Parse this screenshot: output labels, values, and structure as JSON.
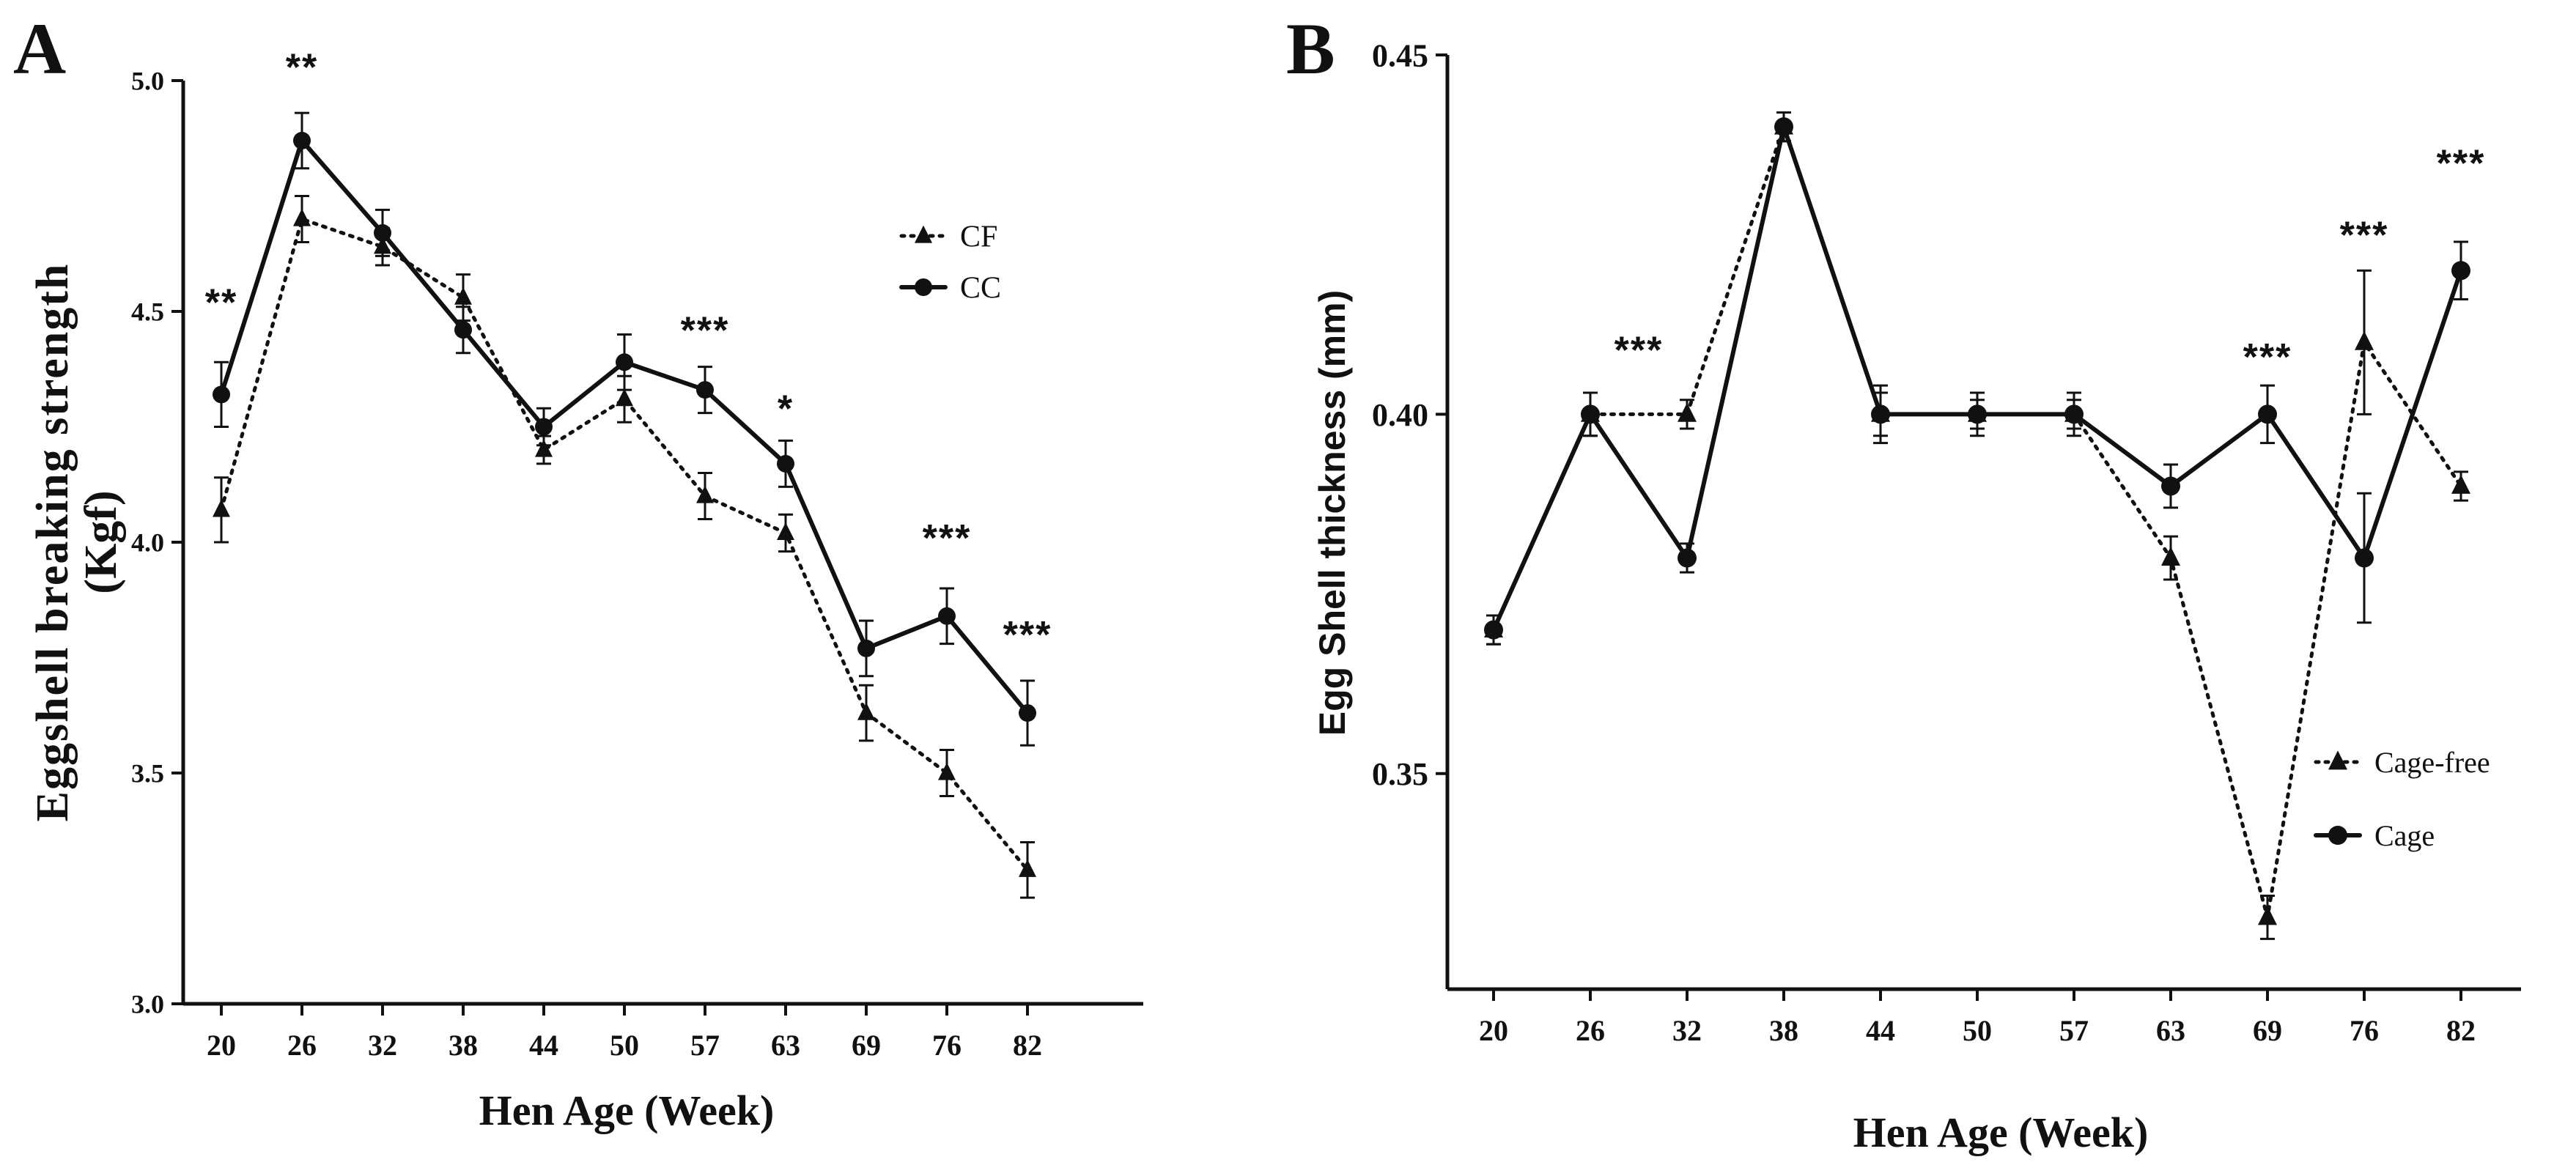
{
  "figure": {
    "panels": [
      "A",
      "B"
    ]
  },
  "colors": {
    "ink": "#111111",
    "background": "#ffffff"
  },
  "chart_data": [
    {
      "panel": "A",
      "type": "line",
      "title": "",
      "xlabel": "Hen Age (Week)",
      "ylabel_line1": "Eggshell breaking strength",
      "ylabel_line2": "(Kgf)",
      "categories": [
        "20",
        "26",
        "32",
        "38",
        "44",
        "50",
        "57",
        "63",
        "69",
        "76",
        "82"
      ],
      "ylim": [
        3.0,
        5.0
      ],
      "yticks": [
        3.0,
        3.5,
        4.0,
        4.5,
        5.0
      ],
      "ytick_labels": [
        "3.0",
        "3.5",
        "4.0",
        "4.5",
        "5.0"
      ],
      "grid": false,
      "legend_position": "top-right",
      "series": [
        {
          "name": "CF",
          "style": "dotted",
          "marker": "triangle",
          "values": [
            4.07,
            4.7,
            4.64,
            4.53,
            4.2,
            4.31,
            4.1,
            4.02,
            3.63,
            3.5,
            3.29
          ],
          "errors": [
            0.07,
            0.05,
            0.04,
            0.05,
            0.03,
            0.05,
            0.05,
            0.04,
            0.06,
            0.05,
            0.06
          ]
        },
        {
          "name": "CC",
          "style": "solid",
          "marker": "circle",
          "values": [
            4.32,
            4.87,
            4.67,
            4.46,
            4.25,
            4.39,
            4.33,
            4.17,
            3.77,
            3.84,
            3.63
          ],
          "errors": [
            0.07,
            0.06,
            0.05,
            0.05,
            0.04,
            0.06,
            0.05,
            0.05,
            0.06,
            0.06,
            0.07
          ]
        }
      ],
      "annotations": [
        {
          "category": "20",
          "text": "**",
          "value": 4.52
        },
        {
          "category": "26",
          "text": "**",
          "value": 5.03
        },
        {
          "category": "57",
          "text": "***",
          "value": 4.46
        },
        {
          "category": "63",
          "text": "*",
          "value": 4.29
        },
        {
          "category": "76",
          "text": "***",
          "value": 4.01
        },
        {
          "category": "82",
          "text": "***",
          "value": 3.8
        }
      ]
    },
    {
      "panel": "B",
      "type": "line",
      "title": "",
      "xlabel": "Hen Age (Week)",
      "ylabel": "Egg Shell thickness (mm)",
      "categories": [
        "20",
        "26",
        "32",
        "38",
        "44",
        "50",
        "57",
        "63",
        "69",
        "76",
        "82"
      ],
      "ylim": [
        0.32,
        0.45
      ],
      "yticks": [
        0.35,
        0.4,
        0.45
      ],
      "ytick_labels": [
        "0.35",
        "0.40",
        "0.45"
      ],
      "grid": false,
      "legend_position": "bottom-right",
      "series": [
        {
          "name": "Cage-free",
          "style": "dotted",
          "marker": "triangle",
          "values": [
            0.37,
            0.4,
            0.4,
            0.44,
            0.4,
            0.4,
            0.4,
            0.38,
            0.33,
            0.41,
            0.39
          ],
          "errors": [
            0.002,
            0.003,
            0.002,
            0.002,
            0.003,
            0.002,
            0.002,
            0.003,
            0.003,
            0.01,
            0.002
          ]
        },
        {
          "name": "Cage",
          "style": "solid",
          "marker": "circle",
          "values": [
            0.37,
            0.4,
            0.38,
            0.44,
            0.4,
            0.4,
            0.4,
            0.39,
            0.4,
            0.38,
            0.42
          ],
          "errors": [
            0.002,
            0.003,
            0.002,
            0.002,
            0.004,
            0.003,
            0.003,
            0.003,
            0.004,
            0.009,
            0.004
          ]
        }
      ],
      "annotations": [
        {
          "category": "26",
          "text": "***",
          "value": 0.409,
          "offset": 0.5
        },
        {
          "category": "69",
          "text": "***",
          "value": 0.408
        },
        {
          "category": "76",
          "text": "***",
          "value": 0.425
        },
        {
          "category": "82",
          "text": "***",
          "value": 0.435
        }
      ]
    }
  ]
}
